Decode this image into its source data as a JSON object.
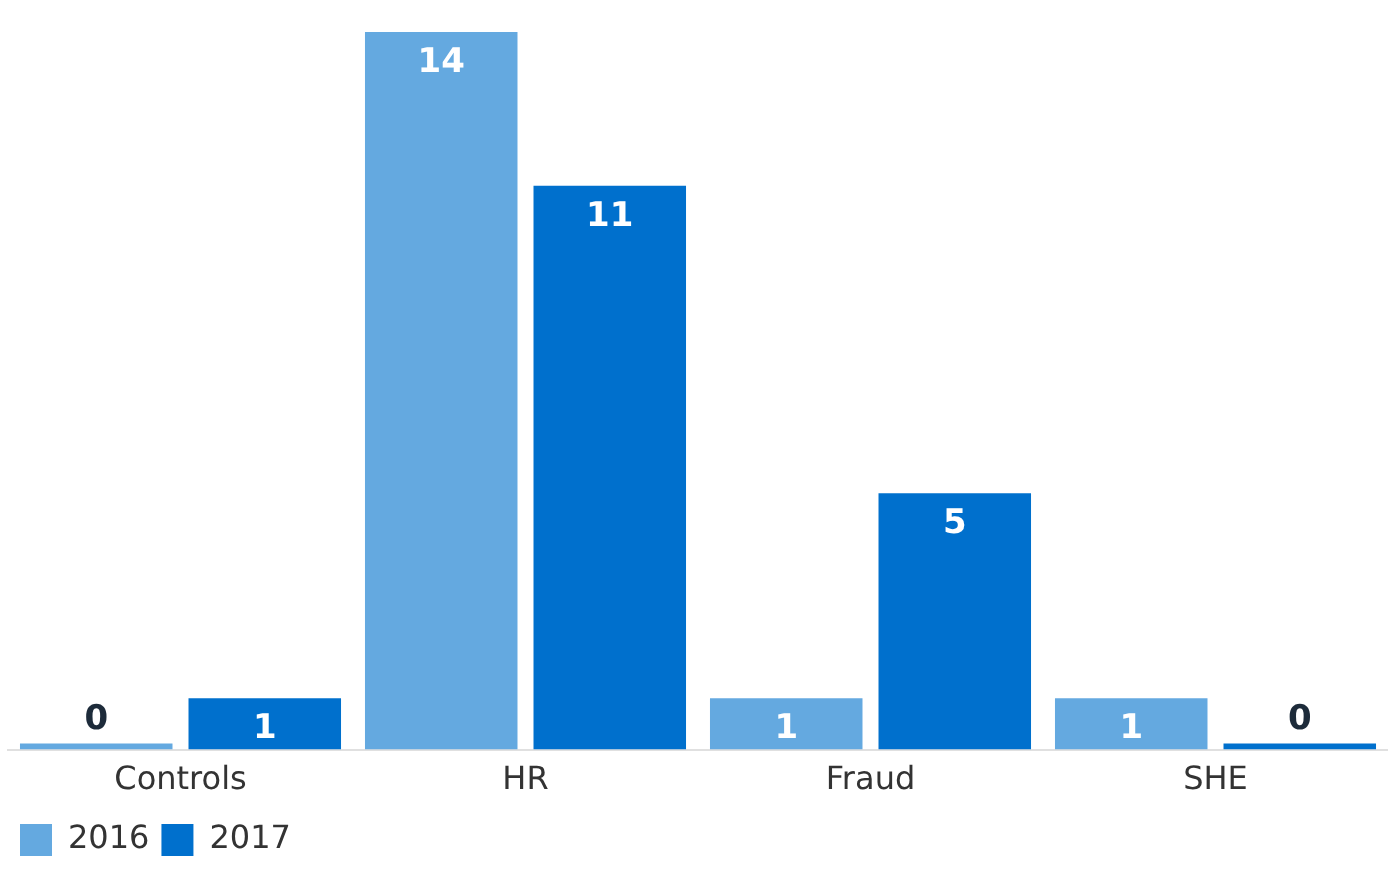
{
  "chart_data": {
    "type": "bar",
    "categories": [
      "Controls",
      "HR",
      "Fraud",
      "SHE"
    ],
    "series": [
      {
        "name": "2016",
        "color": "#64a9e0",
        "values": [
          0,
          14,
          1,
          1
        ]
      },
      {
        "name": "2017",
        "color": "#0070cd",
        "values": [
          1,
          11,
          5,
          0
        ]
      }
    ],
    "data_labels": true,
    "legend": "bottom left",
    "grid": false
  }
}
